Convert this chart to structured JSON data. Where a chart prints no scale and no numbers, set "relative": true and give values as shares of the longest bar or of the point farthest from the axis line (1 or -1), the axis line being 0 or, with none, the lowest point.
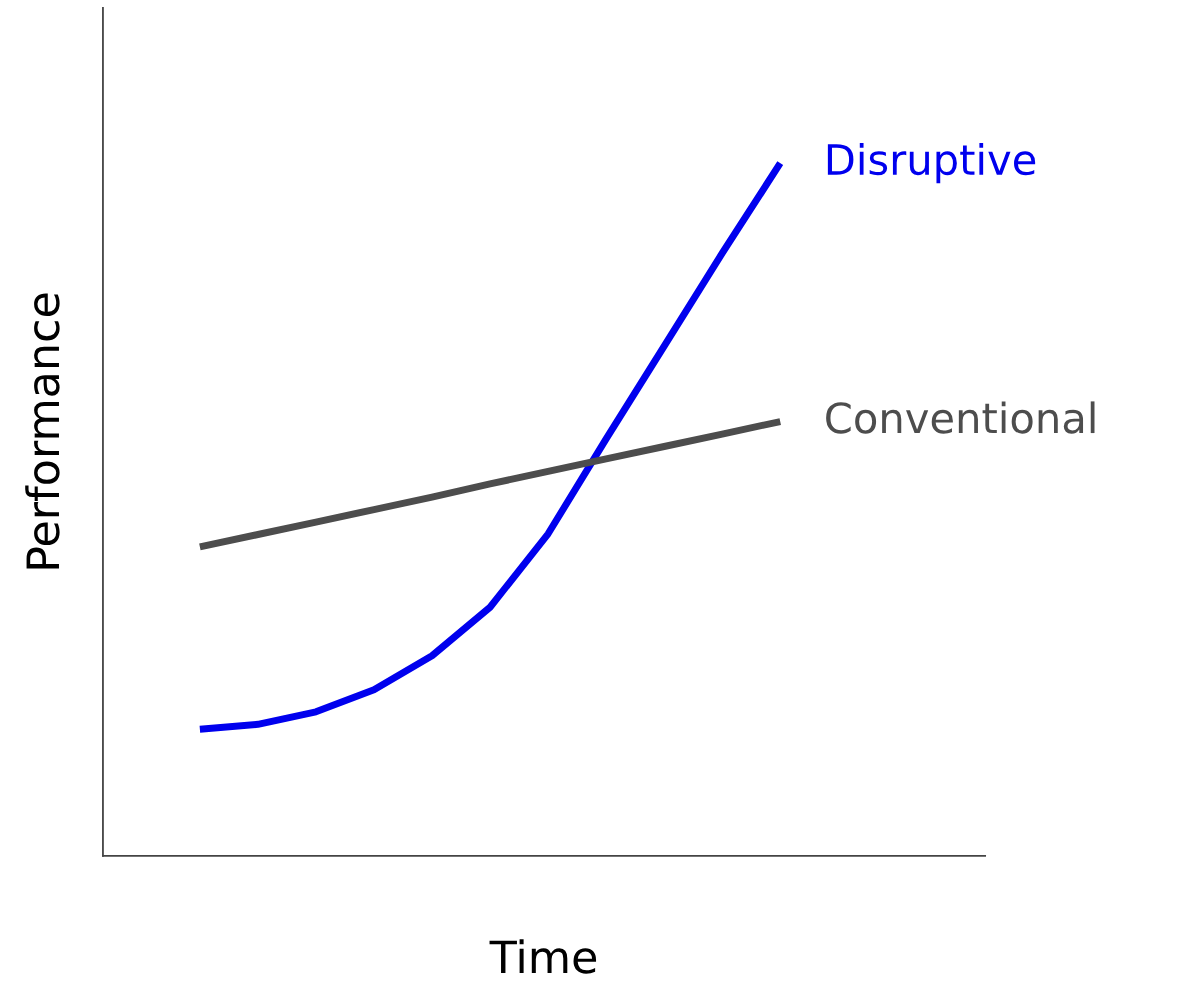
{
  "chart_data": {
    "type": "line",
    "relative": true,
    "xlabel": "Time",
    "ylabel": "Performance",
    "categories": [
      null,
      null,
      null,
      null,
      null,
      null,
      null,
      null,
      null,
      null,
      null
    ],
    "series": [
      {
        "name": "Disruptive",
        "color": "#0000ee",
        "values": [
          0.183,
          0.19,
          0.208,
          0.24,
          0.289,
          0.359,
          0.465,
          0.602,
          0.736,
          0.87,
          1.0
        ]
      },
      {
        "name": "Conventional",
        "color": "#4d4d4d",
        "values": [
          0.446,
          0.464,
          0.482,
          0.5,
          0.518,
          0.537,
          0.555,
          0.573,
          0.591,
          0.609,
          0.627
        ]
      }
    ],
    "grid": false,
    "legend": false,
    "tick_labels": false,
    "marker": "none",
    "line_style": "solid"
  }
}
